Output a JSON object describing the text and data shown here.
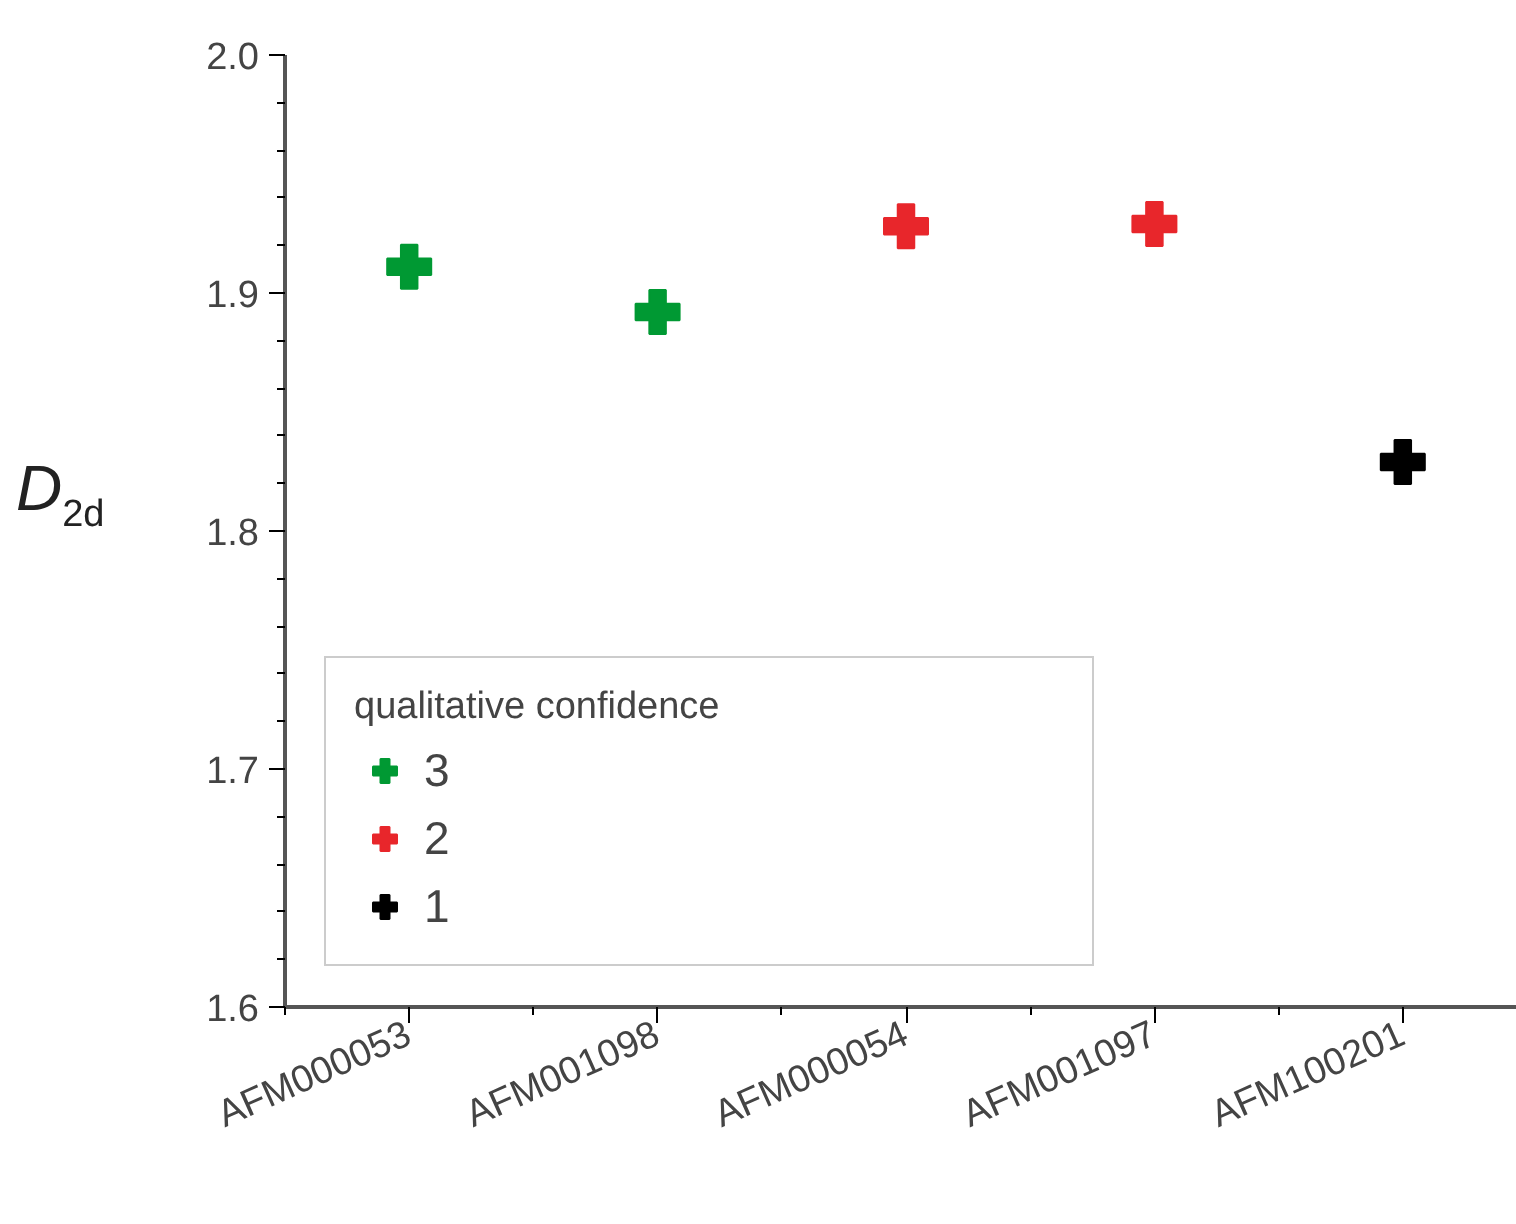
{
  "chart_data": {
    "type": "scatter",
    "ylabel": "D$_{2d}$",
    "legend_title": "qualitative confidence",
    "categories": [
      "AFM000053",
      "AFM001098",
      "AFM000054",
      "AFM001097",
      "AFM100201"
    ],
    "series": [
      {
        "name": "3",
        "color": "#009933",
        "values": [
          1.911,
          1.892,
          null,
          null,
          null
        ]
      },
      {
        "name": "2",
        "color": "#e8262b",
        "values": [
          null,
          null,
          1.928,
          1.929,
          null
        ]
      },
      {
        "name": "1",
        "color": "#000000",
        "values": [
          null,
          null,
          null,
          null,
          1.829
        ]
      }
    ],
    "ylim": [
      1.6,
      2.0
    ],
    "yticks": [
      1.6,
      1.7,
      1.8,
      1.9,
      {
        "value": 2.0,
        "label": "2.0"
      }
    ],
    "marker": "cross",
    "legend": "bottom left",
    "grid": false
  }
}
